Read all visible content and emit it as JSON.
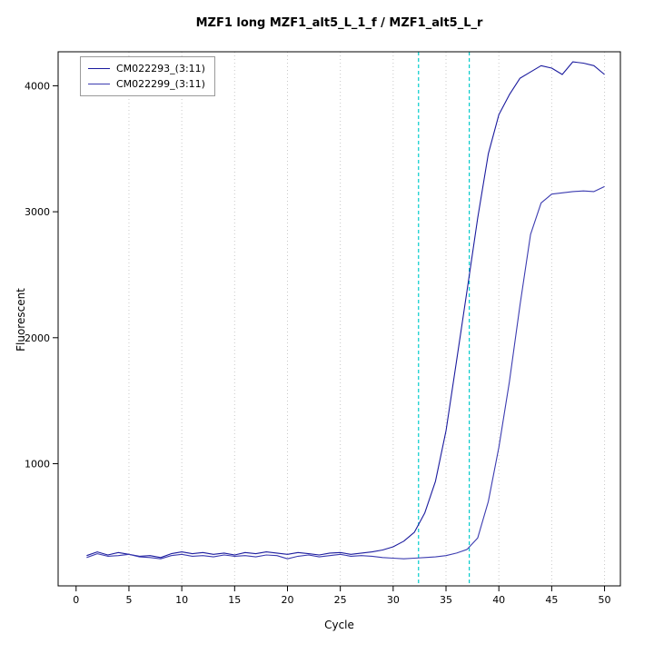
{
  "chart": {
    "title": "MZF1 long MZF1_alt5_L_1_f / MZF1_alt5_L_r",
    "xlabel": "Cycle",
    "ylabel": "Fluorescent"
  },
  "chart_data": {
    "type": "line",
    "title": "MZF1 long MZF1_alt5_L_1_f / MZF1_alt5_L_r",
    "xlabel": "Cycle",
    "ylabel": "Fluorescent",
    "legend_position": "top-left",
    "grid": "vertical-dotted",
    "grid_color": "#c8c8c8",
    "threshold_color": "#00cccc",
    "xlim": [
      -1.7,
      51.5
    ],
    "ylim": [
      30,
      4270
    ],
    "xticks": [
      0,
      5,
      10,
      15,
      20,
      25,
      30,
      35,
      40,
      45,
      50
    ],
    "yticks": [
      1000,
      2000,
      3000,
      4000
    ],
    "x_gridlines": [
      5,
      10,
      15,
      20,
      25,
      30,
      35,
      40,
      45,
      50
    ],
    "thresholds": [
      32.4,
      37.2
    ],
    "x": [
      1,
      2,
      3,
      4,
      5,
      6,
      7,
      8,
      9,
      10,
      11,
      12,
      13,
      14,
      15,
      16,
      17,
      18,
      19,
      20,
      21,
      22,
      23,
      24,
      25,
      26,
      27,
      28,
      29,
      30,
      31,
      32,
      33,
      34,
      35,
      36,
      37,
      38,
      39,
      40,
      41,
      42,
      43,
      44,
      45,
      46,
      47,
      48,
      49,
      50
    ],
    "series": [
      {
        "name": "CM022293_(3:11)",
        "color": "#1b1b9e",
        "values": [
          270,
          300,
          275,
          295,
          280,
          265,
          270,
          255,
          285,
          300,
          285,
          295,
          280,
          290,
          275,
          295,
          285,
          300,
          290,
          280,
          295,
          285,
          275,
          290,
          295,
          280,
          290,
          300,
          315,
          340,
          385,
          455,
          610,
          860,
          1260,
          1820,
          2380,
          2950,
          3460,
          3770,
          3930,
          4060,
          4110,
          4160,
          4140,
          4090,
          4190,
          4180,
          4160,
          4090
        ]
      },
      {
        "name": "CM022299_(3:11)",
        "color": "#3b3bb0",
        "values": [
          255,
          285,
          265,
          270,
          280,
          260,
          255,
          245,
          270,
          280,
          265,
          270,
          260,
          275,
          265,
          270,
          260,
          275,
          270,
          245,
          265,
          275,
          260,
          270,
          280,
          265,
          270,
          265,
          255,
          250,
          245,
          250,
          255,
          260,
          270,
          290,
          320,
          410,
          700,
          1130,
          1650,
          2260,
          2820,
          3070,
          3140,
          3150,
          3160,
          3165,
          3160,
          3200
        ]
      }
    ]
  }
}
